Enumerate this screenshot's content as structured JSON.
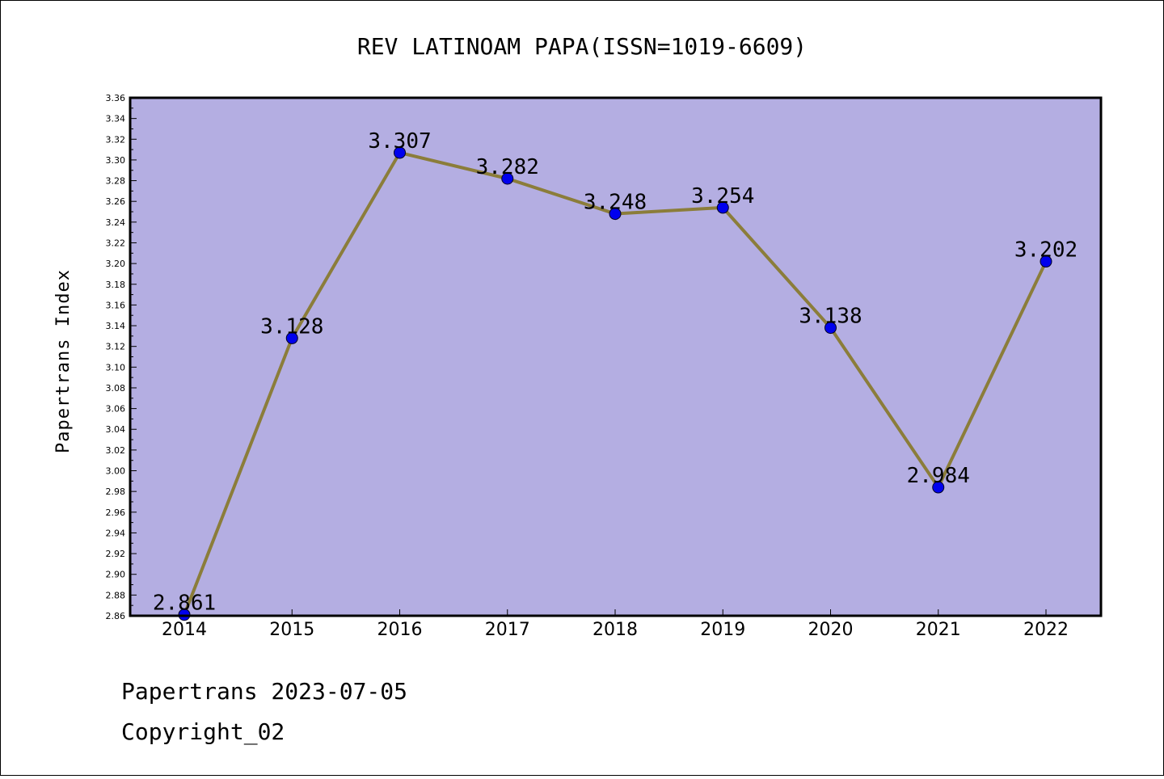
{
  "chart_data": {
    "type": "line",
    "title": "REV LATINOAM PAPA(ISSN=1019-6609)",
    "ylabel": "Papertrans Index",
    "xlabel": "",
    "categories": [
      "2014",
      "2015",
      "2016",
      "2017",
      "2018",
      "2019",
      "2020",
      "2021",
      "2022"
    ],
    "values": [
      2.861,
      3.128,
      3.307,
      3.282,
      3.248,
      3.254,
      3.138,
      2.984,
      3.202
    ],
    "data_labels": [
      "2.861",
      "3.128",
      "3.307",
      "3.282",
      "3.248",
      "3.254",
      "3.138",
      "2.984",
      "3.202"
    ],
    "ylim": [
      2.86,
      3.36
    ],
    "yticks": [
      "2.86",
      "2.88",
      "2.90",
      "2.92",
      "2.94",
      "2.96",
      "2.98",
      "3.00",
      "3.02",
      "3.04",
      "3.06",
      "3.08",
      "3.10",
      "3.12",
      "3.14",
      "3.16",
      "3.18",
      "3.20",
      "3.22",
      "3.24",
      "3.26",
      "3.28",
      "3.30",
      "3.32",
      "3.34",
      "3.36"
    ],
    "grid": false,
    "colors": {
      "plot_background": "#b4aee2",
      "line": "#8b7d3a",
      "marker": "#0000ee",
      "axes": "#000000"
    }
  },
  "footer": {
    "line1": "Papertrans 2023-07-05",
    "line2": "Copyright_02"
  }
}
